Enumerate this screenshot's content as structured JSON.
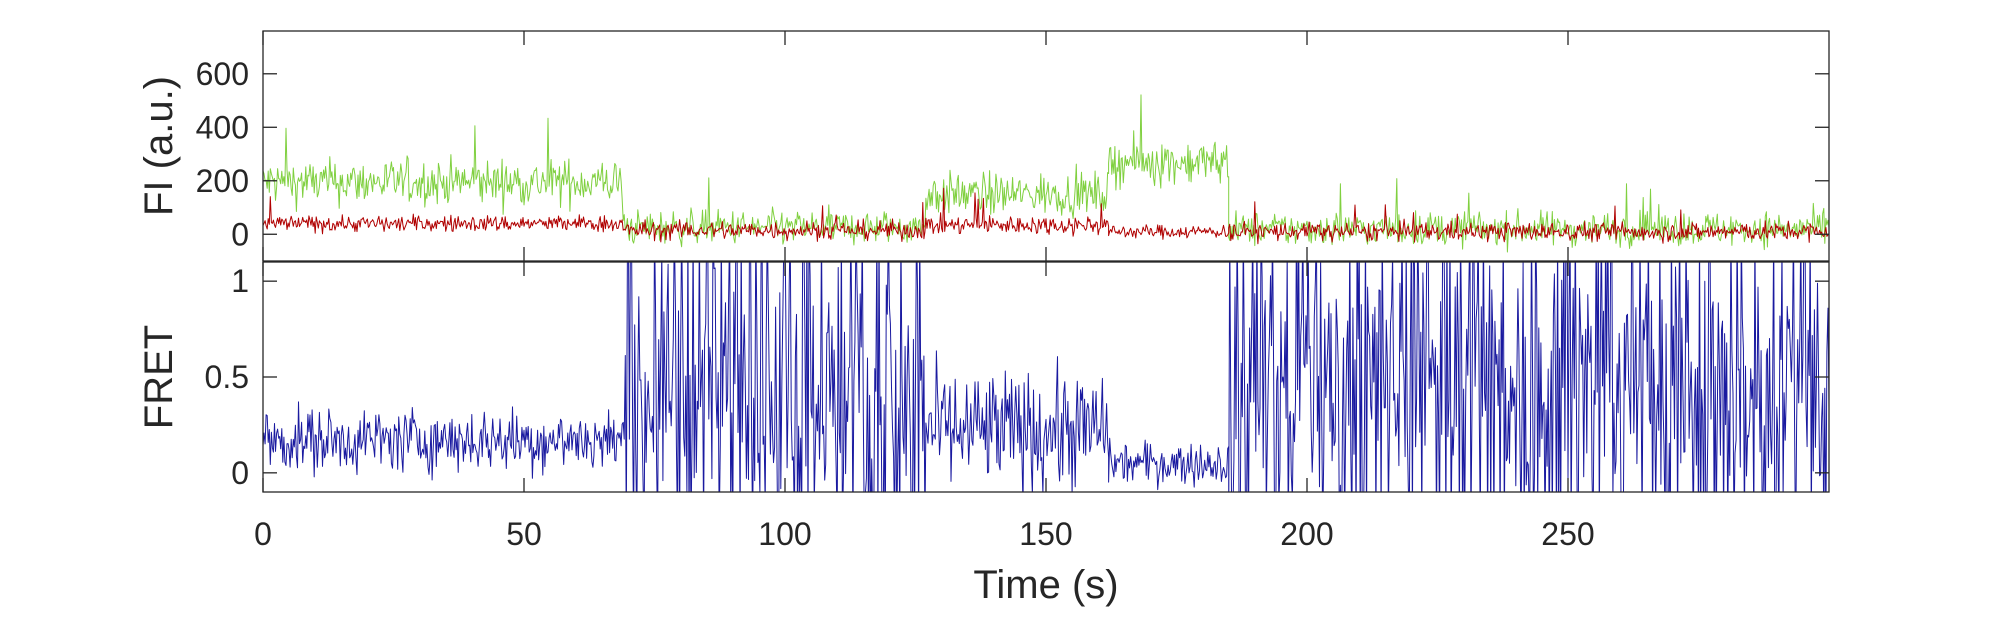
{
  "chart_data": [
    {
      "type": "line",
      "panel": "top",
      "ylabel": "FI (a.u.)",
      "xlim": [
        0,
        300
      ],
      "ylim": [
        -100,
        760
      ],
      "yticks": [
        0,
        200,
        400,
        600
      ],
      "ytick_labels": [
        "0",
        "200",
        "400",
        "600"
      ],
      "grid": false,
      "series": [
        {
          "color": "#80d040",
          "segments": [
            {
              "x": [
                0,
                69
              ],
              "mean": 195,
              "noise": 60
            },
            {
              "x": [
                69,
                127
              ],
              "mean": 25,
              "noise": 45
            },
            {
              "x": [
                127,
                162
              ],
              "mean": 150,
              "noise": 55
            },
            {
              "x": [
                162,
                185
              ],
              "mean": 270,
              "noise": 60
            },
            {
              "x": [
                185,
                300
              ],
              "mean": 20,
              "noise": 45
            }
          ]
        },
        {
          "color": "#b00000",
          "segments": [
            {
              "x": [
                0,
                69
              ],
              "mean": 40,
              "noise": 22
            },
            {
              "x": [
                69,
                127
              ],
              "mean": 15,
              "noise": 25
            },
            {
              "x": [
                127,
                162
              ],
              "mean": 35,
              "noise": 25
            },
            {
              "x": [
                162,
                185
              ],
              "mean": 10,
              "noise": 18
            },
            {
              "x": [
                185,
                300
              ],
              "mean": 10,
              "noise": 25
            }
          ]
        }
      ]
    },
    {
      "type": "line",
      "panel": "bottom",
      "xlabel": "Time (s)",
      "ylabel": "FRET",
      "xlim": [
        0,
        300
      ],
      "ylim": [
        -0.1,
        1.1
      ],
      "xticks": [
        0,
        50,
        100,
        150,
        200,
        250
      ],
      "xtick_labels": [
        "0",
        "50",
        "100",
        "150",
        "200",
        "250"
      ],
      "yticks": [
        0,
        0.5,
        1
      ],
      "ytick_labels": [
        "0",
        "0.5",
        "1"
      ],
      "grid": false,
      "series": [
        {
          "color": "#1a1aa0",
          "segments": [
            {
              "x": [
                0,
                69
              ],
              "mean": 0.17,
              "noise": 0.12
            },
            {
              "x": [
                69,
                127
              ],
              "mean": 0.45,
              "noise": 0.45
            },
            {
              "x": [
                127,
                162
              ],
              "mean": 0.22,
              "noise": 0.22
            },
            {
              "x": [
                162,
                185
              ],
              "mean": 0.05,
              "noise": 0.08
            },
            {
              "x": [
                185,
                300
              ],
              "mean": 0.5,
              "noise": 0.5
            }
          ]
        }
      ]
    }
  ]
}
